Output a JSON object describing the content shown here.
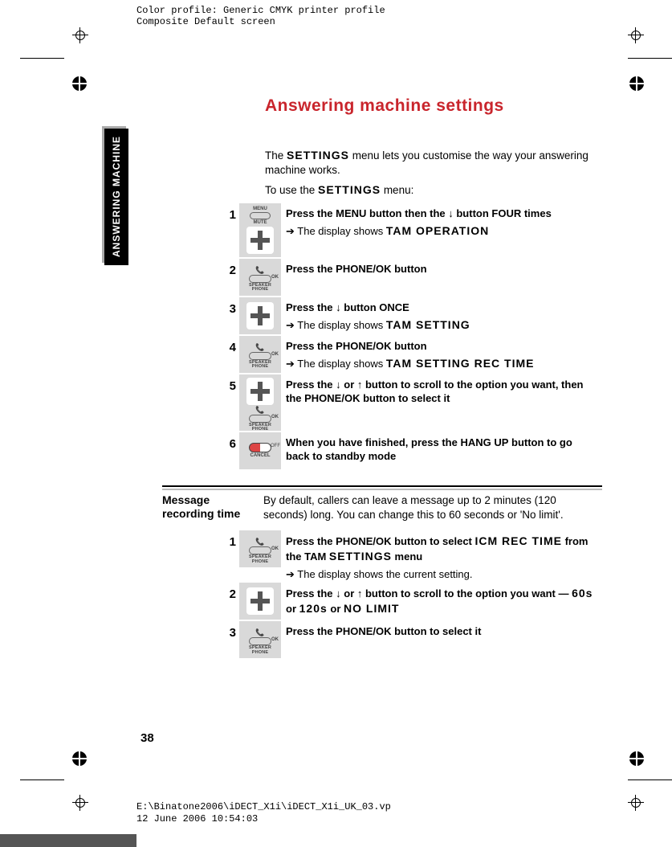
{
  "print_header": {
    "line1": "Color profile: Generic CMYK printer profile",
    "line2": "Composite  Default screen"
  },
  "print_footer": {
    "line1": "E:\\Binatone2006\\iDECT_X1i\\iDECT_X1i_UK_03.vp",
    "line2": "12 June 2006 10:54:03"
  },
  "side_tab": "ANSWERING MACHINE",
  "title": "Answering machine settings",
  "colors": {
    "heading": "#c9252c",
    "sidebar_bg": "#000000",
    "icon_bg": "#d9d9d9"
  },
  "intro": {
    "p1a": "The ",
    "p1_lcd": "SETTINGS",
    "p1b": " menu lets you customise the way your answering machine works.",
    "p2a": "To use the ",
    "p2_lcd": "SETTINGS",
    "p2b": " menu:"
  },
  "steps_a": [
    {
      "num": "1",
      "icons": [
        "menu",
        "plus"
      ],
      "main_parts": [
        "Press the ",
        "MENU",
        " button then the ↓ button FOUR times"
      ],
      "sub_parts": [
        "The display shows ",
        "TAM OPERATION"
      ]
    },
    {
      "num": "2",
      "icons": [
        "ok"
      ],
      "main_parts": [
        "Press the ",
        "PHONE/OK",
        " button"
      ]
    },
    {
      "num": "3",
      "icons": [
        "plus"
      ],
      "main_parts": [
        "Press the ↓ button ONCE"
      ],
      "sub_parts": [
        "The display shows ",
        "TAM SETTING"
      ]
    },
    {
      "num": "4",
      "icons": [
        "ok"
      ],
      "main_parts": [
        "Press the ",
        "PHONE/OK",
        " button"
      ],
      "sub_parts": [
        "The display shows ",
        "TAM SETTING REC TIME"
      ]
    },
    {
      "num": "5",
      "icons": [
        "plus",
        "ok"
      ],
      "main_parts": [
        "Press the ↓ or ↑ button to scroll to the option you want, then the ",
        "PHONE/OK",
        " button to select it"
      ]
    },
    {
      "num": "6",
      "icons": [
        "cancel"
      ],
      "main_parts": [
        "When you have finished, press the ",
        "HANG UP",
        " button to go back to standby mode"
      ]
    }
  ],
  "section2": {
    "label": "Message recording time",
    "text": "By default, callers can leave a message up to 2 minutes (120 seconds) long. You can change this to 60 seconds or 'No limit'."
  },
  "steps_b": [
    {
      "num": "1",
      "icons": [
        "ok"
      ],
      "main_html": "Press the <b>PHONE/OK</b> button to select <span class='lcd'>ICM REC TIME</span> from the TAM <span class='lcd'>SETTINGS</span> menu",
      "sub_plain": "The display shows the current setting."
    },
    {
      "num": "2",
      "icons": [
        "plus"
      ],
      "main_html": "Press the ↓ or ↑ button to scroll to the option you want — <span class='lcd'>60s</span> or <span class='lcd'>120s</span> or <span class='lcd'>NO LIMIT</span>"
    },
    {
      "num": "3",
      "icons": [
        "ok"
      ],
      "main_html": "Press the <b>PHONE/OK</b> button to select it"
    }
  ],
  "page_number": "38"
}
